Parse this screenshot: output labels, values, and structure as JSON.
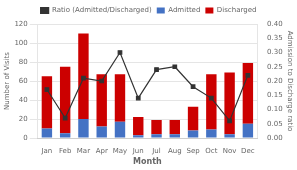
{
  "chart_data": {
    "type": "bar",
    "stacked": true,
    "categories": [
      "Jan",
      "Feb",
      "Mar",
      "Apr",
      "May",
      "Jun",
      "Jul",
      "Aug",
      "Sep",
      "Oct",
      "Nov",
      "Dec"
    ],
    "series": [
      {
        "name": "Admitted",
        "color": "#4472c4",
        "values": [
          10,
          5,
          20,
          12,
          17,
          3,
          4,
          4,
          8,
          9,
          4,
          15
        ]
      },
      {
        "name": "Discharged",
        "color": "#cc0000",
        "values": [
          55,
          70,
          90,
          55,
          50,
          19,
          15,
          15,
          25,
          58,
          65,
          64
        ]
      },
      {
        "name": "Ratio (Admitted/Discharged)",
        "type": "line",
        "axis": "y2",
        "color": "#333333",
        "marker": "square",
        "line_style": "solid",
        "values": [
          0.17,
          0.07,
          0.21,
          0.2,
          0.3,
          0.14,
          0.24,
          0.25,
          0.18,
          0.14,
          0.06,
          0.22
        ]
      }
    ],
    "xlabel": "Month",
    "ylabel": "Number of Visits",
    "y2label": "Admission to Discharge ratio",
    "ylim": [
      0,
      120
    ],
    "yticks": [
      0,
      20,
      40,
      60,
      80,
      100,
      120
    ],
    "y2lim": [
      0,
      0.4
    ],
    "y2ticks": [
      {
        "value": 0,
        "label": "0.00"
      },
      0.05,
      {
        "value": 0.1,
        "label": "0.10"
      },
      0.15,
      {
        "value": 0.2,
        "label": "0.20"
      },
      0.25,
      {
        "value": 0.3,
        "label": "0.30"
      },
      0.35,
      {
        "value": 0.4,
        "label": "0.40"
      }
    ],
    "grid": true,
    "legend": "top"
  }
}
